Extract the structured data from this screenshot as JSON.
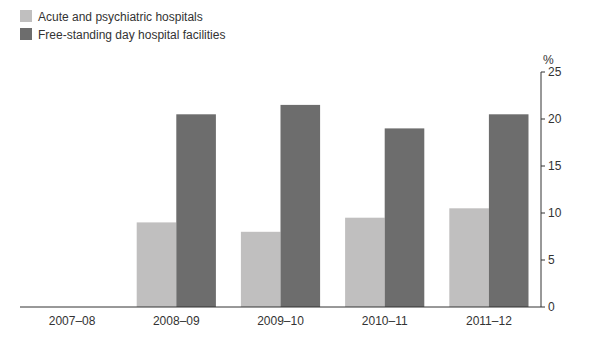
{
  "chart_data": {
    "type": "bar",
    "categories": [
      "2007–08",
      "2008–09",
      "2009–10",
      "2010–11",
      "2011–12"
    ],
    "series": [
      {
        "name": "Acute and psychiatric hospitals",
        "color": "#c0bfbf",
        "values": [
          0.0,
          9.0,
          8.0,
          9.5,
          10.5
        ]
      },
      {
        "name": "Free-standing day hospital facilities",
        "color": "#6d6d6d",
        "values": [
          0.0,
          20.5,
          21.5,
          19.0,
          20.5
        ]
      }
    ],
    "ylabel": "%",
    "ylim": [
      0,
      25
    ],
    "yticks": [
      0,
      5,
      10,
      15,
      20,
      25
    ],
    "legend": "upper left"
  }
}
